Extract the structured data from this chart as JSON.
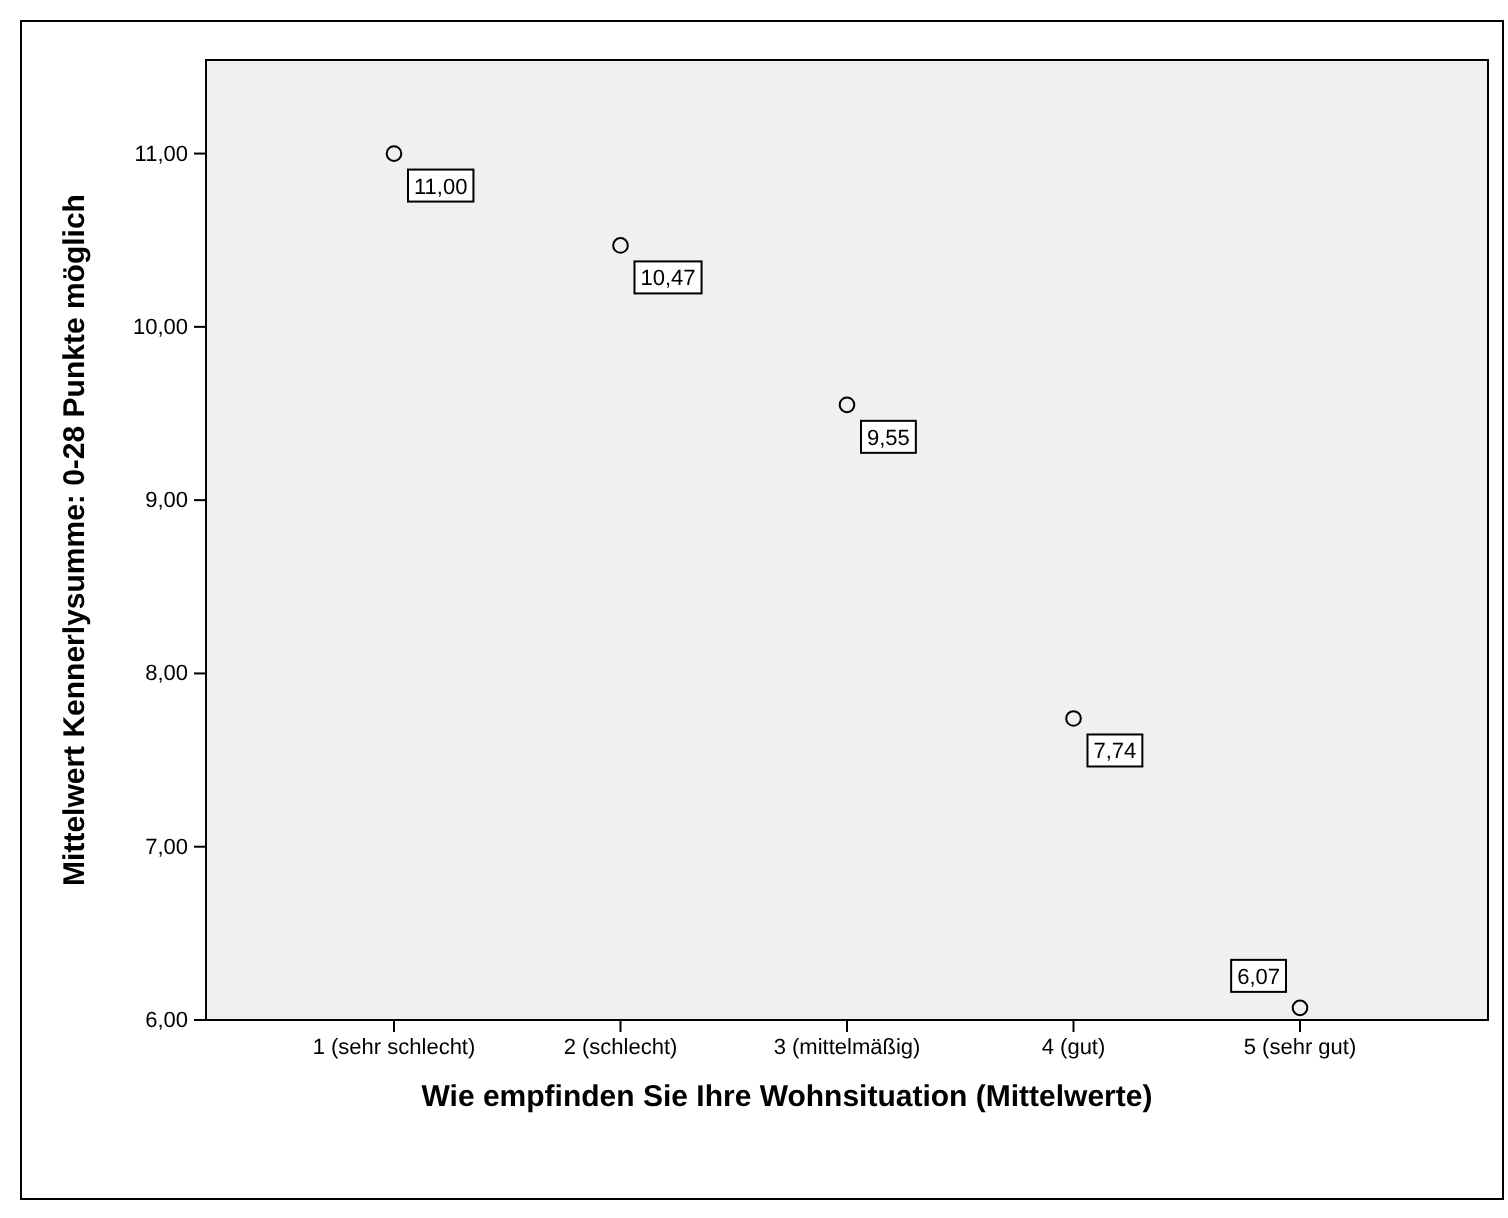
{
  "chart_data": {
    "type": "scatter",
    "xlabel": "Wie empfinden Sie Ihre Wohnsituation (Mittelwerte)",
    "ylabel": "Mittelwert Kennerlysumme: 0-28 Punkte möglich",
    "categories": [
      "1 (sehr schlecht)",
      "2 (schlecht)",
      "3 (mittelmäßig)",
      "4 (gut)",
      "5 (sehr gut)"
    ],
    "values": [
      11.0,
      10.47,
      9.55,
      7.74,
      6.07
    ],
    "value_labels": [
      "11,00",
      "10,47",
      "9,55",
      "7,74",
      "6,07"
    ],
    "color": "#000000",
    "marker": "circle",
    "ylim": [
      6,
      11.54
    ],
    "yticks": [
      {
        "value": 6,
        "label": "6,00"
      },
      {
        "value": 7,
        "label": "7,00"
      },
      {
        "value": 8,
        "label": "8,00"
      },
      {
        "value": 9,
        "label": "9,00"
      },
      {
        "value": 10,
        "label": "10,00"
      },
      {
        "value": 11,
        "label": "11,00"
      }
    ],
    "grid": false
  }
}
